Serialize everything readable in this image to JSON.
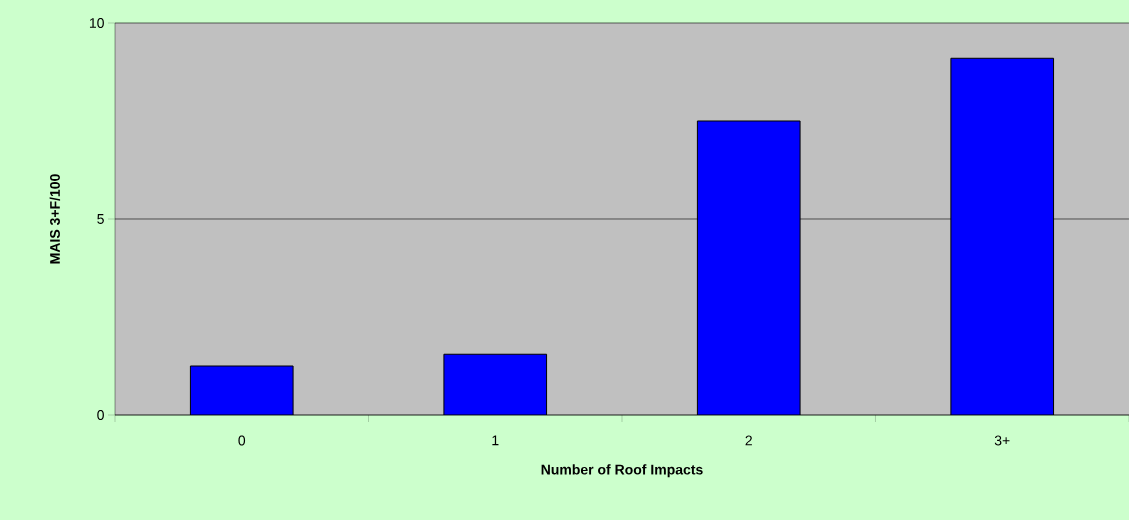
{
  "chart_data": {
    "type": "bar",
    "xlabel": "Number of Roof Impacts",
    "ylabel": "MAIS 3+F/100",
    "categories": [
      "0",
      "1",
      "2",
      "3+"
    ],
    "values": [
      1.25,
      1.55,
      7.5,
      9.1
    ],
    "color": "#0000ff",
    "ylim": [
      0,
      10
    ],
    "yticks": [
      0,
      5,
      10
    ],
    "grid": "y"
  }
}
